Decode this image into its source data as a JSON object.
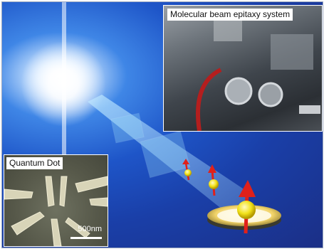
{
  "inset_label": "Molecular beam epitaxy system",
  "qd_label": "Quantum Dot",
  "scale_label": "500nm",
  "colors": {
    "background_blue": "#1e55c8",
    "spin_arrow_red": "#e0201a",
    "dot_yellow": "#f2e21a"
  }
}
